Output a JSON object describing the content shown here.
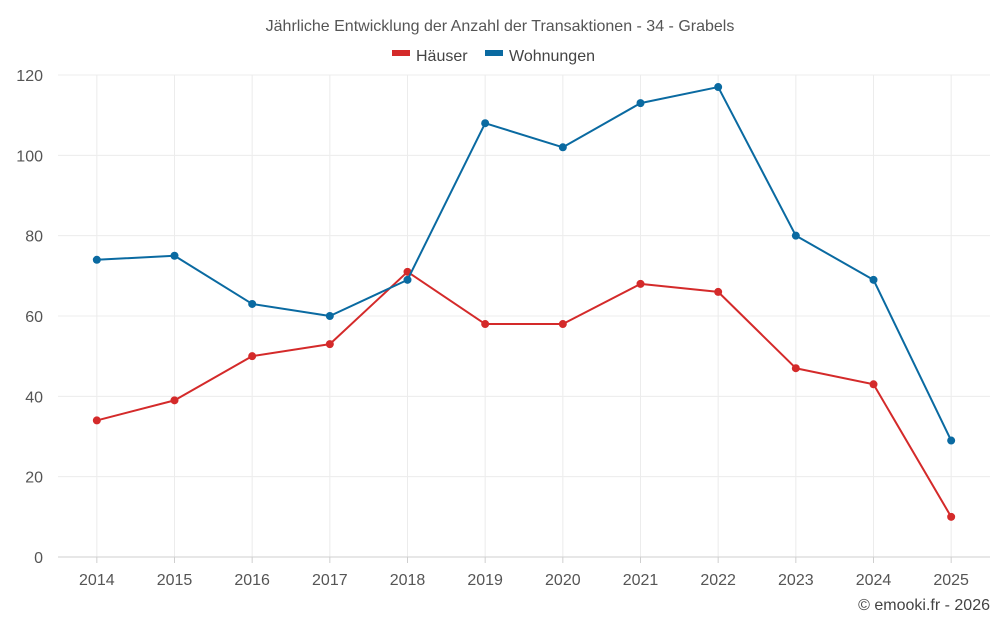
{
  "chart_data": {
    "type": "line",
    "title": "Jährliche Entwicklung der Anzahl der Transaktionen - 34 - Grabels",
    "categories": [
      "2014",
      "2015",
      "2016",
      "2017",
      "2018",
      "2019",
      "2020",
      "2021",
      "2022",
      "2023",
      "2024",
      "2025"
    ],
    "series": [
      {
        "name": "Häuser",
        "color": "#d42a2a",
        "values": [
          34,
          39,
          50,
          53,
          71,
          58,
          58,
          68,
          66,
          47,
          43,
          10
        ]
      },
      {
        "name": "Wohnungen",
        "color": "#0a6aa1",
        "values": [
          74,
          75,
          63,
          60,
          69,
          108,
          102,
          113,
          117,
          80,
          69,
          29
        ]
      }
    ],
    "ylim": [
      0,
      120
    ],
    "yticks": [
      0,
      20,
      40,
      60,
      80,
      100,
      120
    ],
    "grid": true,
    "legend_position": "top-center",
    "credit": "© emooki.fr - 2026"
  }
}
